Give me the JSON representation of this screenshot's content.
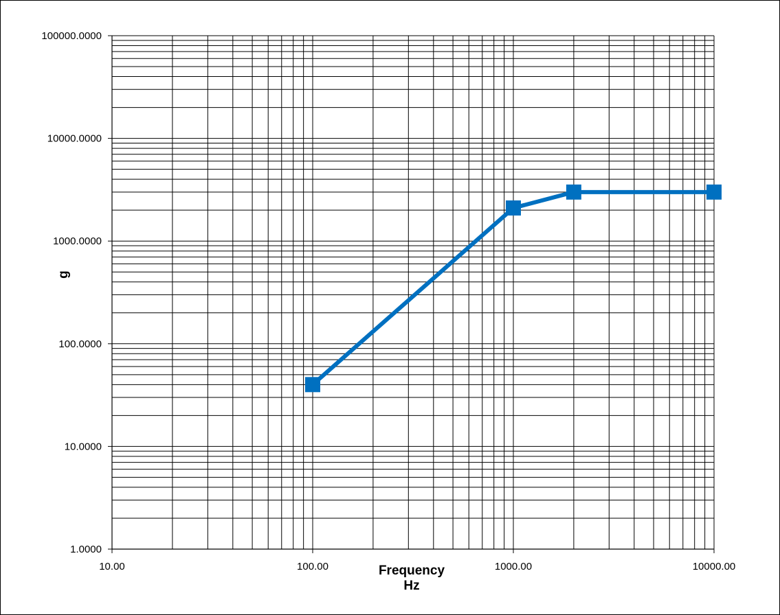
{
  "chart_data": {
    "type": "line",
    "title": "",
    "xlabel_lines": [
      "Frequency",
      "Hz"
    ],
    "ylabel": "g",
    "x_scale": "log",
    "y_scale": "log",
    "xlim": [
      10,
      10000
    ],
    "ylim": [
      1,
      100000
    ],
    "x_tick_values": [
      10,
      100,
      1000,
      10000
    ],
    "x_tick_labels": [
      "10.00",
      "100.00",
      "1000.00",
      "10000.00"
    ],
    "y_tick_values": [
      1,
      10,
      100,
      1000,
      10000,
      100000
    ],
    "y_tick_labels": [
      "1.0000",
      "10.0000",
      "100.0000",
      "1000.0000",
      "10000.0000",
      "100000.0000"
    ],
    "grid": "major and minor",
    "legend": "none",
    "series": [
      {
        "color": "#0070C0",
        "marker": "square",
        "x": [
          100,
          1000,
          2000,
          10000
        ],
        "y": [
          40,
          2100,
          3000,
          3000
        ]
      }
    ]
  }
}
